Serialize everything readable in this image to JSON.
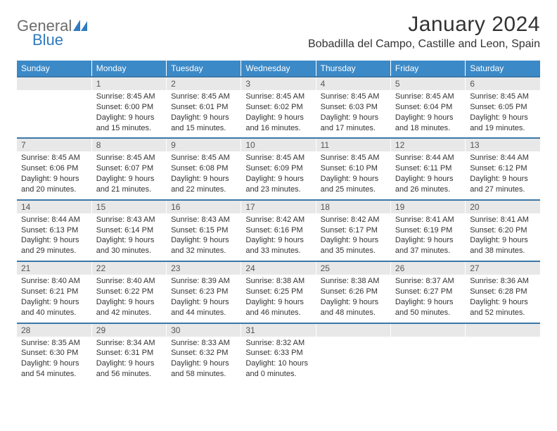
{
  "brand": {
    "word1": "General",
    "word2": "Blue",
    "color_word1": "#6c6c6c",
    "color_word2": "#2f7bbf",
    "icon_color": "#2f7bbf"
  },
  "header": {
    "month_title": "January 2024",
    "location": "Bobadilla del Campo, Castille and Leon, Spain"
  },
  "styling": {
    "header_bg": "#3b89c7",
    "header_text": "#ffffff",
    "daynum_bg": "#e8e8e8",
    "row_border": "#3b78a8",
    "body_text": "#333333",
    "font_family": "Arial",
    "month_title_fontsize": 30,
    "location_fontsize": 16,
    "dayhead_fontsize": 12,
    "cell_fontsize": 11
  },
  "day_headers": [
    "Sunday",
    "Monday",
    "Tuesday",
    "Wednesday",
    "Thursday",
    "Friday",
    "Saturday"
  ],
  "weeks": [
    {
      "nums": [
        "",
        "1",
        "2",
        "3",
        "4",
        "5",
        "6"
      ],
      "cells": [
        {
          "sunrise": "",
          "sunset": "",
          "daylight": ""
        },
        {
          "sunrise": "Sunrise: 8:45 AM",
          "sunset": "Sunset: 6:00 PM",
          "daylight": "Daylight: 9 hours and 15 minutes."
        },
        {
          "sunrise": "Sunrise: 8:45 AM",
          "sunset": "Sunset: 6:01 PM",
          "daylight": "Daylight: 9 hours and 15 minutes."
        },
        {
          "sunrise": "Sunrise: 8:45 AM",
          "sunset": "Sunset: 6:02 PM",
          "daylight": "Daylight: 9 hours and 16 minutes."
        },
        {
          "sunrise": "Sunrise: 8:45 AM",
          "sunset": "Sunset: 6:03 PM",
          "daylight": "Daylight: 9 hours and 17 minutes."
        },
        {
          "sunrise": "Sunrise: 8:45 AM",
          "sunset": "Sunset: 6:04 PM",
          "daylight": "Daylight: 9 hours and 18 minutes."
        },
        {
          "sunrise": "Sunrise: 8:45 AM",
          "sunset": "Sunset: 6:05 PM",
          "daylight": "Daylight: 9 hours and 19 minutes."
        }
      ]
    },
    {
      "nums": [
        "7",
        "8",
        "9",
        "10",
        "11",
        "12",
        "13"
      ],
      "cells": [
        {
          "sunrise": "Sunrise: 8:45 AM",
          "sunset": "Sunset: 6:06 PM",
          "daylight": "Daylight: 9 hours and 20 minutes."
        },
        {
          "sunrise": "Sunrise: 8:45 AM",
          "sunset": "Sunset: 6:07 PM",
          "daylight": "Daylight: 9 hours and 21 minutes."
        },
        {
          "sunrise": "Sunrise: 8:45 AM",
          "sunset": "Sunset: 6:08 PM",
          "daylight": "Daylight: 9 hours and 22 minutes."
        },
        {
          "sunrise": "Sunrise: 8:45 AM",
          "sunset": "Sunset: 6:09 PM",
          "daylight": "Daylight: 9 hours and 23 minutes."
        },
        {
          "sunrise": "Sunrise: 8:45 AM",
          "sunset": "Sunset: 6:10 PM",
          "daylight": "Daylight: 9 hours and 25 minutes."
        },
        {
          "sunrise": "Sunrise: 8:44 AM",
          "sunset": "Sunset: 6:11 PM",
          "daylight": "Daylight: 9 hours and 26 minutes."
        },
        {
          "sunrise": "Sunrise: 8:44 AM",
          "sunset": "Sunset: 6:12 PM",
          "daylight": "Daylight: 9 hours and 27 minutes."
        }
      ]
    },
    {
      "nums": [
        "14",
        "15",
        "16",
        "17",
        "18",
        "19",
        "20"
      ],
      "cells": [
        {
          "sunrise": "Sunrise: 8:44 AM",
          "sunset": "Sunset: 6:13 PM",
          "daylight": "Daylight: 9 hours and 29 minutes."
        },
        {
          "sunrise": "Sunrise: 8:43 AM",
          "sunset": "Sunset: 6:14 PM",
          "daylight": "Daylight: 9 hours and 30 minutes."
        },
        {
          "sunrise": "Sunrise: 8:43 AM",
          "sunset": "Sunset: 6:15 PM",
          "daylight": "Daylight: 9 hours and 32 minutes."
        },
        {
          "sunrise": "Sunrise: 8:42 AM",
          "sunset": "Sunset: 6:16 PM",
          "daylight": "Daylight: 9 hours and 33 minutes."
        },
        {
          "sunrise": "Sunrise: 8:42 AM",
          "sunset": "Sunset: 6:17 PM",
          "daylight": "Daylight: 9 hours and 35 minutes."
        },
        {
          "sunrise": "Sunrise: 8:41 AM",
          "sunset": "Sunset: 6:19 PM",
          "daylight": "Daylight: 9 hours and 37 minutes."
        },
        {
          "sunrise": "Sunrise: 8:41 AM",
          "sunset": "Sunset: 6:20 PM",
          "daylight": "Daylight: 9 hours and 38 minutes."
        }
      ]
    },
    {
      "nums": [
        "21",
        "22",
        "23",
        "24",
        "25",
        "26",
        "27"
      ],
      "cells": [
        {
          "sunrise": "Sunrise: 8:40 AM",
          "sunset": "Sunset: 6:21 PM",
          "daylight": "Daylight: 9 hours and 40 minutes."
        },
        {
          "sunrise": "Sunrise: 8:40 AM",
          "sunset": "Sunset: 6:22 PM",
          "daylight": "Daylight: 9 hours and 42 minutes."
        },
        {
          "sunrise": "Sunrise: 8:39 AM",
          "sunset": "Sunset: 6:23 PM",
          "daylight": "Daylight: 9 hours and 44 minutes."
        },
        {
          "sunrise": "Sunrise: 8:38 AM",
          "sunset": "Sunset: 6:25 PM",
          "daylight": "Daylight: 9 hours and 46 minutes."
        },
        {
          "sunrise": "Sunrise: 8:38 AM",
          "sunset": "Sunset: 6:26 PM",
          "daylight": "Daylight: 9 hours and 48 minutes."
        },
        {
          "sunrise": "Sunrise: 8:37 AM",
          "sunset": "Sunset: 6:27 PM",
          "daylight": "Daylight: 9 hours and 50 minutes."
        },
        {
          "sunrise": "Sunrise: 8:36 AM",
          "sunset": "Sunset: 6:28 PM",
          "daylight": "Daylight: 9 hours and 52 minutes."
        }
      ]
    },
    {
      "nums": [
        "28",
        "29",
        "30",
        "31",
        "",
        "",
        ""
      ],
      "cells": [
        {
          "sunrise": "Sunrise: 8:35 AM",
          "sunset": "Sunset: 6:30 PM",
          "daylight": "Daylight: 9 hours and 54 minutes."
        },
        {
          "sunrise": "Sunrise: 8:34 AM",
          "sunset": "Sunset: 6:31 PM",
          "daylight": "Daylight: 9 hours and 56 minutes."
        },
        {
          "sunrise": "Sunrise: 8:33 AM",
          "sunset": "Sunset: 6:32 PM",
          "daylight": "Daylight: 9 hours and 58 minutes."
        },
        {
          "sunrise": "Sunrise: 8:32 AM",
          "sunset": "Sunset: 6:33 PM",
          "daylight": "Daylight: 10 hours and 0 minutes."
        },
        {
          "sunrise": "",
          "sunset": "",
          "daylight": ""
        },
        {
          "sunrise": "",
          "sunset": "",
          "daylight": ""
        },
        {
          "sunrise": "",
          "sunset": "",
          "daylight": ""
        }
      ]
    }
  ]
}
